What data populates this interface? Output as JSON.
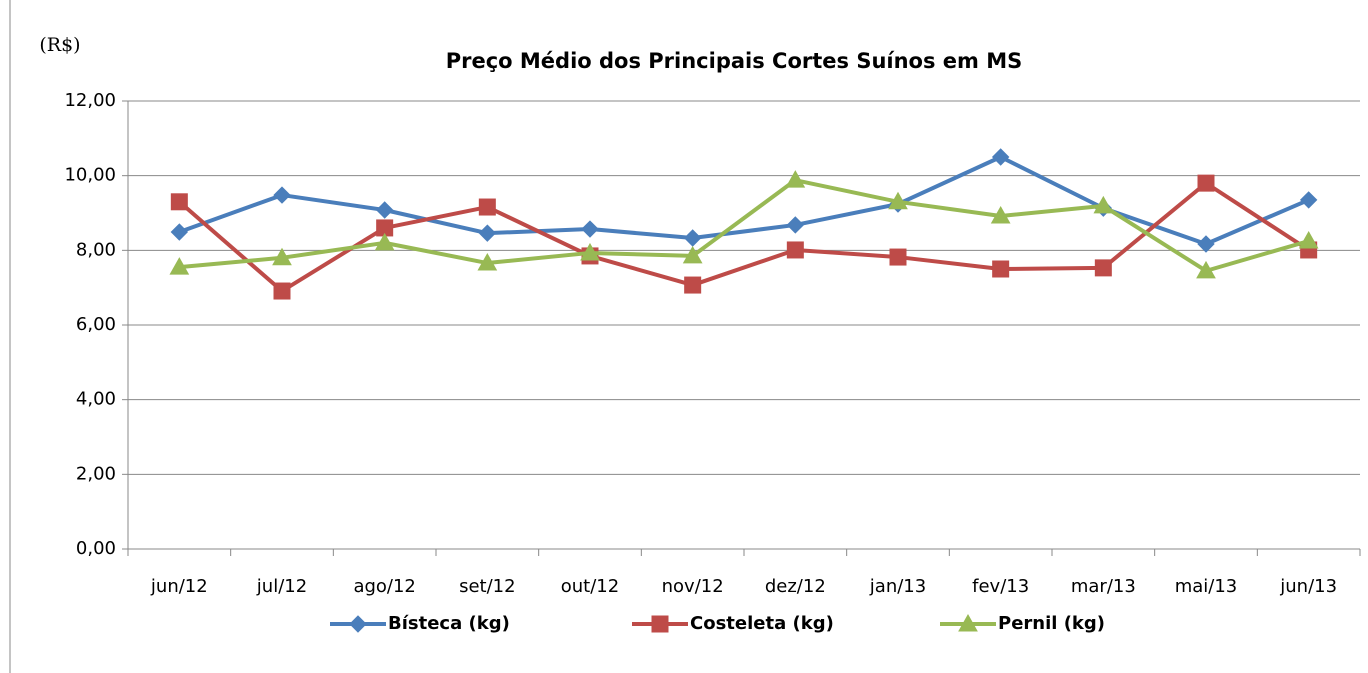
{
  "chart_data": {
    "type": "line",
    "title": "Preço Médio dos Principais Cortes Suínos em MS",
    "y_label": "(R$)",
    "categories": [
      "jun/12",
      "jul/12",
      "ago/12",
      "set/12",
      "out/12",
      "nov/12",
      "dez/12",
      "jan/13",
      "fev/13",
      "mar/13",
      "mai/13",
      "jun/13"
    ],
    "series": [
      {
        "name": "Bísteca (kg)",
        "color": "#4a7ebb",
        "marker": "diamond",
        "values": [
          8.49,
          9.48,
          9.08,
          8.46,
          8.57,
          8.33,
          8.68,
          9.24,
          10.5,
          9.13,
          8.17,
          9.35
        ]
      },
      {
        "name": "Costeleta (kg)",
        "color": "#be4b48",
        "marker": "square",
        "values": [
          9.3,
          6.91,
          8.6,
          9.16,
          7.85,
          7.07,
          8.01,
          7.82,
          7.5,
          7.53,
          9.8,
          8.01
        ]
      },
      {
        "name": "Pernil (kg)",
        "color": "#98b954",
        "marker": "triangle",
        "values": [
          7.55,
          7.8,
          8.2,
          7.66,
          7.93,
          7.85,
          9.88,
          9.3,
          8.92,
          9.19,
          7.45,
          8.25
        ]
      }
    ],
    "ylim": [
      0,
      12
    ],
    "yticks": [
      {
        "value": 0,
        "label": "0,00"
      },
      {
        "value": 2,
        "label": "2,00"
      },
      {
        "value": 4,
        "label": "4,00"
      },
      {
        "value": 6,
        "label": "6,00"
      },
      {
        "value": 8,
        "label": "8,00"
      },
      {
        "value": 10,
        "label": "10,00"
      },
      {
        "value": 12,
        "label": "12,00"
      }
    ],
    "grid": true,
    "legend": "bottom"
  }
}
